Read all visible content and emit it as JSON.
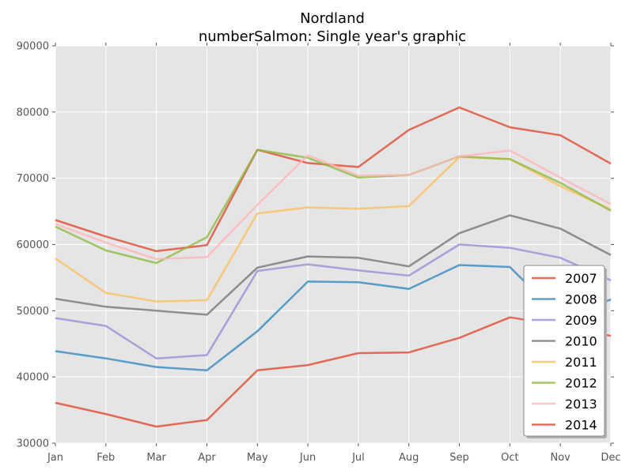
{
  "chart_data": {
    "type": "line",
    "title": "Nordland",
    "subtitle": "numberSalmon: Single year's graphic",
    "xlabel": "",
    "ylabel": "",
    "categories": [
      "Jan",
      "Feb",
      "Mar",
      "Apr",
      "May",
      "Jun",
      "Jul",
      "Aug",
      "Sep",
      "Oct",
      "Nov",
      "Dec"
    ],
    "ylim": [
      30000,
      90000
    ],
    "yticks": [
      30000,
      40000,
      50000,
      60000,
      70000,
      80000,
      90000
    ],
    "ytick_labels": [
      "30000",
      "40000",
      "50000",
      "60000",
      "70000",
      "80000",
      "90000"
    ],
    "grid": true,
    "legend_position": "bottom-right",
    "series": [
      {
        "name": "2007",
        "color": "#E24A33",
        "values": [
          63700,
          61200,
          59000,
          59900,
          74300,
          72300,
          71700,
          77300,
          80700,
          77700,
          76500,
          72200
        ]
      },
      {
        "name": "2008",
        "color": "#348ABD",
        "values": [
          43900,
          42800,
          41500,
          41000,
          46900,
          54400,
          54300,
          53300,
          56900,
          56600,
          49000,
          51700
        ]
      },
      {
        "name": "2009",
        "color": "#988ED5",
        "values": [
          48900,
          47700,
          42800,
          43300,
          56000,
          57000,
          56100,
          55300,
          60000,
          59500,
          58000,
          54600
        ]
      },
      {
        "name": "2010",
        "color": "#777777",
        "values": [
          51800,
          50600,
          50000,
          49400,
          56500,
          58200,
          58000,
          56700,
          61700,
          64400,
          62400,
          58400
        ]
      },
      {
        "name": "2011",
        "color": "#FBC15E",
        "values": [
          57900,
          52700,
          51400,
          51600,
          64700,
          65600,
          65400,
          65800,
          73200,
          72900,
          68800,
          65300
        ]
      },
      {
        "name": "2012",
        "color": "#8EBA42",
        "values": [
          62700,
          59100,
          57200,
          61100,
          74300,
          73100,
          70100,
          70500,
          73300,
          72900,
          69300,
          65100
        ]
      },
      {
        "name": "2013",
        "color": "#FFB5B8",
        "values": [
          63100,
          60300,
          57800,
          58100,
          66000,
          73500,
          70400,
          70500,
          73300,
          74200,
          70100,
          66100
        ]
      },
      {
        "name": "2014",
        "color": "#E24A33",
        "values": [
          36100,
          34400,
          32500,
          33500,
          41000,
          41800,
          43600,
          43700,
          45900,
          49000,
          47800,
          46200
        ]
      }
    ]
  }
}
